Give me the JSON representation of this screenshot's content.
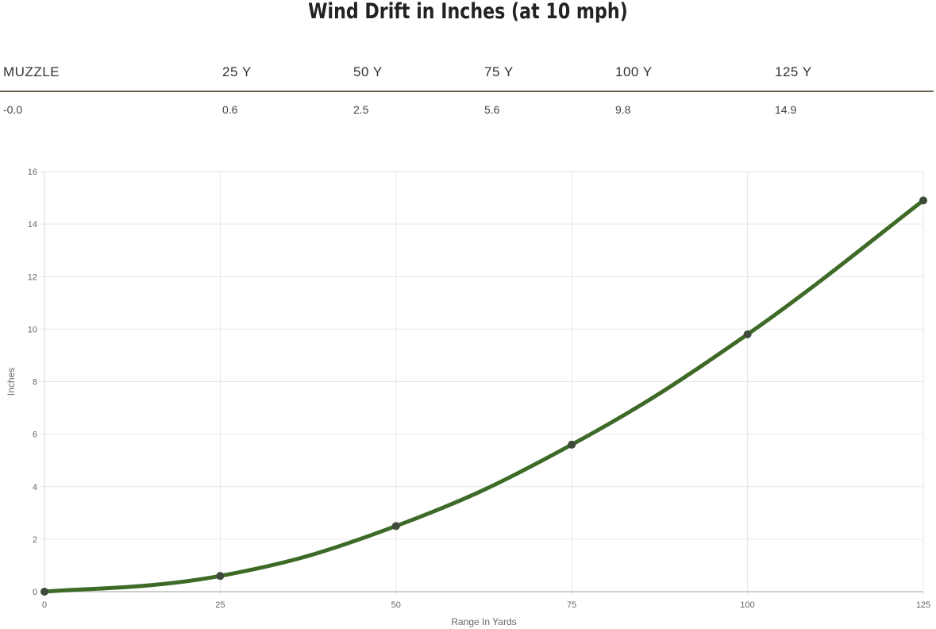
{
  "page": {
    "title": "Wind Drift in Inches (at 10 mph)"
  },
  "table": {
    "headers": [
      "MUZZLE",
      "25 Y",
      "50 Y",
      "75 Y",
      "100 Y",
      "125 Y"
    ],
    "values": [
      "-0.0",
      "0.6",
      "2.5",
      "5.6",
      "9.8",
      "14.9"
    ]
  },
  "chart_data": {
    "type": "line",
    "x": [
      0,
      25,
      50,
      75,
      100,
      125
    ],
    "series": [
      {
        "values": [
          0.0,
          0.6,
          2.5,
          5.6,
          9.8,
          14.9
        ]
      }
    ],
    "xlabel": "Range In Yards",
    "ylabel": "Inches",
    "xlim": [
      0,
      125
    ],
    "ylim": [
      0,
      16
    ],
    "xticks": [
      0,
      25,
      50,
      75,
      100,
      125
    ],
    "yticks": [
      0,
      2,
      4,
      6,
      8,
      10,
      12,
      14,
      16
    ],
    "grid": true,
    "legend": "none",
    "line_color": "#3d6b27",
    "point_color": "#3f4a3a"
  }
}
